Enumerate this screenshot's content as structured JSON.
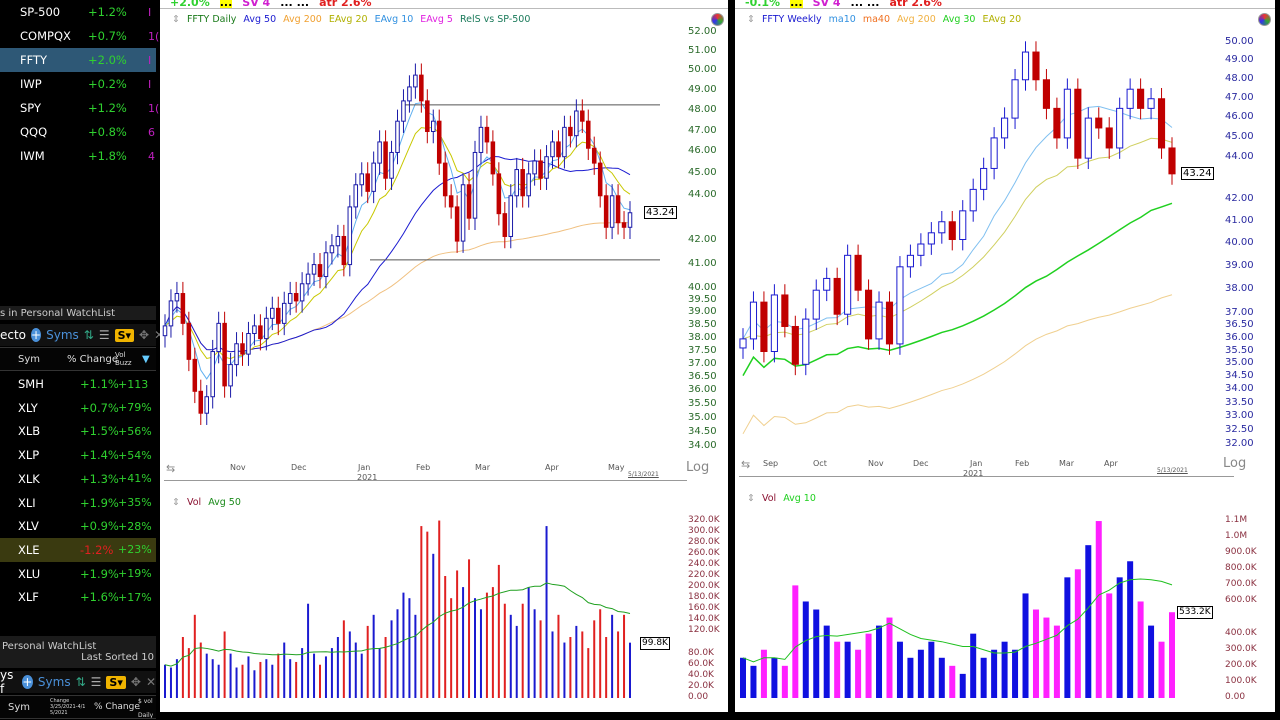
{
  "top_list": [
    {
      "sym": "SP-500",
      "pct": "+1.2%",
      "extra": "I"
    },
    {
      "sym": "COMPQX",
      "pct": "+0.7%",
      "extra": "1("
    },
    {
      "sym": "FFTY",
      "pct": "+2.0%",
      "extra": "I",
      "selected": true
    },
    {
      "sym": "IWP",
      "pct": "+0.2%",
      "extra": "I"
    },
    {
      "sym": "SPY",
      "pct": "+1.2%",
      "extra": "1("
    },
    {
      "sym": "QQQ",
      "pct": "+0.8%",
      "extra": "6"
    },
    {
      "sym": "IWM",
      "pct": "+1.8%",
      "extra": "4"
    }
  ],
  "watchlist1": {
    "caption": "s in Personal WatchList",
    "title": "ecto",
    "syms_label": "Syms",
    "s_label": "S▾",
    "cols": [
      "Sym",
      "% Change",
      "Vol Buzz"
    ],
    "rows": [
      {
        "sym": "SMH",
        "pct": "+1.1%",
        "buzz": "+113"
      },
      {
        "sym": "XLY",
        "pct": "+0.7%",
        "buzz": "+79%"
      },
      {
        "sym": "XLB",
        "pct": "+1.5%",
        "buzz": "+56%"
      },
      {
        "sym": "XLP",
        "pct": "+1.4%",
        "buzz": "+54%"
      },
      {
        "sym": "XLK",
        "pct": "+1.3%",
        "buzz": "+41%"
      },
      {
        "sym": "XLI",
        "pct": "+1.9%",
        "buzz": "+35%"
      },
      {
        "sym": "XLV",
        "pct": "+0.9%",
        "buzz": "+28%"
      },
      {
        "sym": "XLE",
        "pct": "-1.2%",
        "buzz": "+23%",
        "highlight": true
      },
      {
        "sym": "XLU",
        "pct": "+1.9%",
        "buzz": "+19%"
      },
      {
        "sym": "XLF",
        "pct": "+1.6%",
        "buzz": "+17%"
      }
    ]
  },
  "watchlist2": {
    "caption": "Personal WatchList",
    "sorted": "Last Sorted 10",
    "title": "ys f",
    "syms_label": "Syms",
    "s_label": "S▾",
    "cols": [
      "Sym",
      "Change 3/25/2021-4/1 5/2021",
      "% Change",
      "$ vol - Daily"
    ]
  },
  "colors": {
    "up_daily": "#1a1aa8",
    "down": "#c00000",
    "up_weekly_vol": "#1010e0",
    "down_weekly_vol": "#ff20ff",
    "green": "#2fd12f"
  },
  "daily": {
    "strip": [
      "+2.0%",
      "...",
      "SV 4",
      "... ...",
      "atr 2.6%"
    ],
    "legend": [
      {
        "t": "FFTY Daily",
        "c": "#1a7a1a"
      },
      {
        "t": "Avg 50",
        "c": "#1a1ad0"
      },
      {
        "t": "Avg 200",
        "c": "#f0a030"
      },
      {
        "t": "EAvg 20",
        "c": "#b0b000"
      },
      {
        "t": "EAvg 10",
        "c": "#3090e0"
      },
      {
        "t": "EAvg 5",
        "c": "#e020e0"
      },
      {
        "t": "RelS vs SP-500",
        "c": "#1a7a5a"
      }
    ],
    "price_ticks": [
      "52.00",
      "51.00",
      "50.00",
      "49.00",
      "48.00",
      "47.00",
      "46.00",
      "45.00",
      "44.00",
      "42.00",
      "41.00",
      "40.00",
      "39.50",
      "39.00",
      "38.50",
      "38.00",
      "37.50",
      "37.00",
      "36.50",
      "36.00",
      "35.50",
      "35.00",
      "34.50",
      "34.00"
    ],
    "last_price": "43.24",
    "x_labels": [
      "Nov",
      "Dec",
      "Jan",
      "Feb",
      "Mar",
      "Apr",
      "May"
    ],
    "year": "2021",
    "date": "5/13/2021",
    "log": "Log",
    "vol_legend": [
      {
        "t": "Vol",
        "c": "#8a1030"
      },
      {
        "t": "Avg 50",
        "c": "#1a8a1a"
      }
    ],
    "vol_ticks": [
      "320.0K",
      "300.0K",
      "280.0K",
      "260.0K",
      "240.0K",
      "220.0K",
      "200.0K",
      "180.0K",
      "160.0K",
      "140.0K",
      "120.0K",
      "80.0K",
      "60.0K",
      "40.0K",
      "20.0K",
      "0.00"
    ],
    "last_vol": "99.8K"
  },
  "weekly": {
    "strip": [
      "-0.1%",
      "...",
      "SV 4",
      "... ...",
      "atr 2.6%"
    ],
    "legend": [
      {
        "t": "FFTY Weekly",
        "c": "#1a1ad0"
      },
      {
        "t": "ma10",
        "c": "#3090e0"
      },
      {
        "t": "ma40",
        "c": "#f07020"
      },
      {
        "t": "Avg 200",
        "c": "#f0b040"
      },
      {
        "t": "Avg 30",
        "c": "#20d020"
      },
      {
        "t": "EAvg 20",
        "c": "#b0b000"
      }
    ],
    "price_ticks": [
      "50.00",
      "49.00",
      "48.00",
      "47.00",
      "46.00",
      "45.00",
      "44.00",
      "42.00",
      "41.00",
      "40.00",
      "39.00",
      "38.00",
      "37.00",
      "36.50",
      "36.00",
      "35.50",
      "35.00",
      "34.50",
      "34.00",
      "33.50",
      "33.00",
      "32.50",
      "32.00"
    ],
    "last_price": "43.24",
    "x_labels": [
      "Sep",
      "Oct",
      "Nov",
      "Dec",
      "Jan",
      "Feb",
      "Mar",
      "Apr"
    ],
    "year": "2021",
    "date": "5/13/2021",
    "log": "Log",
    "vol_legend": [
      {
        "t": "Vol",
        "c": "#8a1030"
      },
      {
        "t": "Avg 10",
        "c": "#20d020"
      }
    ],
    "vol_ticks": [
      "1.1M",
      "1.0M",
      "900.0K",
      "800.0K",
      "700.0K",
      "600.0K",
      "400.0K",
      "300.0K",
      "200.0K",
      "100.0K",
      "0.00"
    ],
    "last_vol": "533.2K"
  },
  "chart_data": [
    {
      "type": "candlestick",
      "title": "FFTY Daily",
      "scale": "log",
      "ylim": [
        34,
        52
      ],
      "closes": [
        38.5,
        39.5,
        39.8,
        38.6,
        37.2,
        36.0,
        35.2,
        35.8,
        37.5,
        38.6,
        36.2,
        37.0,
        37.8,
        37.4,
        38.2,
        38.5,
        38.0,
        38.8,
        39.2,
        38.6,
        39.4,
        39.8,
        39.5,
        40.2,
        40.6,
        41.0,
        40.5,
        41.5,
        41.8,
        42.2,
        41.0,
        43.5,
        44.5,
        45.0,
        44.2,
        45.5,
        46.5,
        44.8,
        46.0,
        47.5,
        48.5,
        49.2,
        49.8,
        48.5,
        47.0,
        47.5,
        45.5,
        44.0,
        43.5,
        42.0,
        44.5,
        43.0,
        46.0,
        47.2,
        46.5,
        45.0,
        43.2,
        42.2,
        44.0,
        45.2,
        44.0,
        45.0,
        45.6,
        44.8,
        45.8,
        46.5,
        45.8,
        47.2,
        46.8,
        48.0,
        47.5,
        46.2,
        45.5,
        44.0,
        42.6,
        44.0,
        42.8,
        42.6,
        43.24
      ],
      "volume_k": [
        60,
        55,
        70,
        110,
        90,
        150,
        100,
        80,
        70,
        60,
        120,
        80,
        55,
        60,
        75,
        50,
        65,
        70,
        60,
        80,
        100,
        70,
        65,
        90,
        170,
        80,
        60,
        75,
        90,
        110,
        140,
        120,
        100,
        80,
        130,
        150,
        90,
        110,
        140,
        160,
        190,
        180,
        150,
        310,
        300,
        260,
        320,
        220,
        180,
        230,
        200,
        250,
        180,
        160,
        190,
        200,
        240,
        170,
        150,
        130,
        170,
        200,
        160,
        140,
        310,
        120,
        150,
        100,
        110,
        130,
        120,
        90,
        140,
        160,
        110,
        150,
        120,
        150,
        99.8
      ],
      "levels": [
        48.3,
        41.2
      ]
    },
    {
      "type": "candlestick",
      "title": "FFTY Weekly",
      "scale": "log",
      "ylim": [
        32,
        50
      ],
      "closes": [
        36.0,
        37.5,
        35.5,
        37.8,
        36.5,
        35.0,
        36.8,
        38.0,
        38.5,
        37.0,
        39.5,
        38.0,
        36.0,
        37.5,
        35.8,
        39.0,
        39.5,
        40.0,
        40.5,
        41.0,
        40.2,
        41.5,
        42.5,
        43.5,
        45.0,
        46.0,
        48.0,
        49.5,
        48.0,
        46.5,
        45.0,
        47.5,
        44.0,
        46.0,
        45.5,
        44.5,
        46.5,
        47.5,
        46.5,
        47.0,
        44.5,
        43.24
      ],
      "volume_k": [
        250,
        200,
        300,
        250,
        200,
        700,
        600,
        550,
        450,
        350,
        350,
        300,
        400,
        450,
        500,
        350,
        250,
        300,
        350,
        250,
        200,
        150,
        400,
        250,
        300,
        350,
        300,
        650,
        550,
        500,
        450,
        750,
        800,
        950,
        1100,
        650,
        750,
        850,
        600,
        450,
        350,
        533.2
      ]
    }
  ]
}
